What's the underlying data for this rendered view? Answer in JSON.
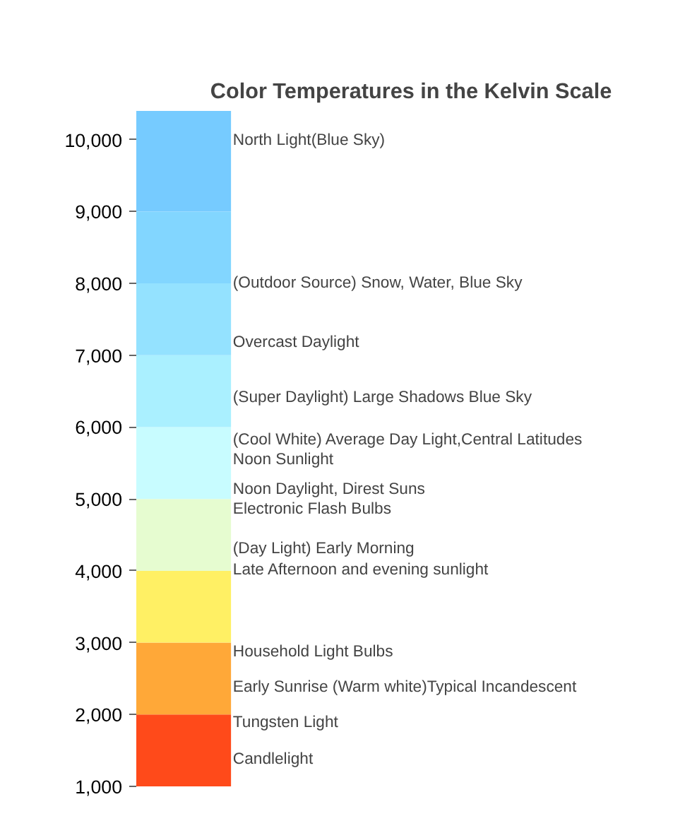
{
  "chart_data": {
    "type": "bar",
    "title": "Color Temperatures in the Kelvin Scale",
    "categories": [
      null
    ],
    "stacked": true,
    "series": [
      {
        "color": "#ff4a1a",
        "values": [
          2000
        ]
      },
      {
        "color": "#ffa838",
        "values": [
          1000
        ]
      },
      {
        "color": "#fff064",
        "values": [
          1000
        ]
      },
      {
        "color": "#e6fcd0",
        "values": [
          1000
        ]
      },
      {
        "color": "#c8fcff",
        "values": [
          1000
        ]
      },
      {
        "color": "#aaf0ff",
        "values": [
          1000
        ]
      },
      {
        "color": "#94e2ff",
        "values": [
          1000
        ]
      },
      {
        "color": "#82d6ff",
        "values": [
          1000
        ]
      },
      {
        "color": "#76cbff",
        "values": [
          1400
        ]
      }
    ],
    "ylim": [
      1000,
      10400
    ],
    "yticks": [
      {
        "value": 1000,
        "label": "1,000"
      },
      {
        "value": 2000,
        "label": "2,000"
      },
      {
        "value": 3000,
        "label": "3,000"
      },
      {
        "value": 4000,
        "label": "4,000"
      },
      {
        "value": 5000,
        "label": "5,000"
      },
      {
        "value": 6000,
        "label": "6,000"
      },
      {
        "value": 7000,
        "label": "7,000"
      },
      {
        "value": 8000,
        "label": "8,000"
      },
      {
        "value": 9000,
        "label": "9,000"
      },
      {
        "value": 10000,
        "label": "10,000"
      }
    ],
    "annotations": [
      "North Light(Blue Sky)",
      "(Outdoor Source) Snow, Water, Blue Sky",
      "Overcast Daylight",
      "(Super Daylight) Large Shadows Blue Sky",
      "(Cool White) Average Day Light,Central Latitudes",
      "Noon Sunlight",
      "Noon Daylight, Direst Suns",
      "Electronic Flash Bulbs",
      "(Day Light)   Early Morning",
      "Late Afternoon and evening sunlight",
      "Household Light Bulbs",
      "Early Sunrise (Warm white)Typical Incandescent",
      "Tungsten Light",
      "Candlelight"
    ]
  }
}
